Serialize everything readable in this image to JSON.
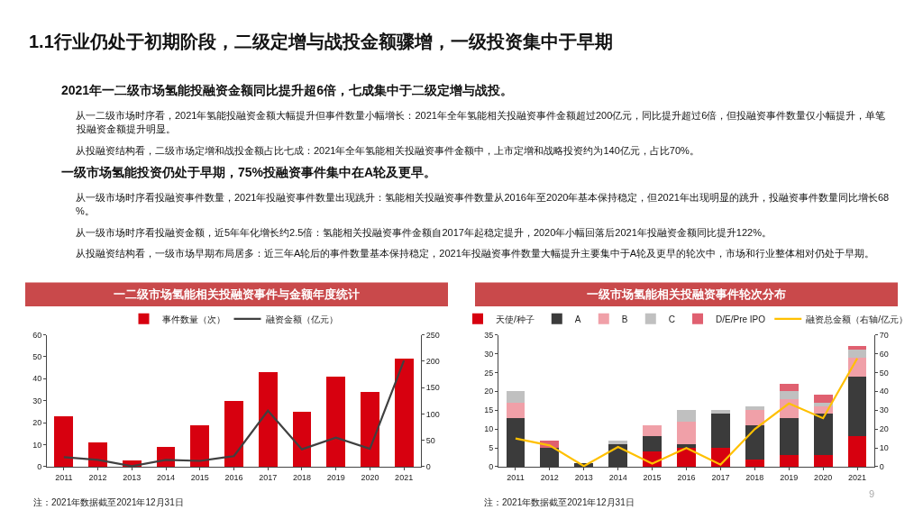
{
  "chart_data": [
    {
      "type": "other",
      "title": "1.1行业仍处于初期阶段，二级定增与战投金额骤增，一级投资集中于早期",
      "annotations": [
        "9"
      ]
    },
    {
      "type": "other",
      "title": "2021年一二级市场氢能投融资金额同比提升超6倍，七成集中于二级定增与战投。",
      "annotations": [
        "从一二级市场时序看，2021年氢能投融资金额大幅提升但事件数量小幅增长：2021年全年氢能相关投融资事件金额超过200亿元，同比提升超过6倍，但投融资事件数量仅小幅提升，单笔投融资金额提升明显。",
        "从投融资结构看，二级市场定增和战投金额占比七成：2021年全年氢能相关投融资事件金额中，上市定增和战略投资约为140亿元，占比70%。"
      ]
    },
    {
      "type": "other",
      "title": "一级市场氢能投资仍处于早期，75%投融资事件集中在A轮及更早。",
      "annotations": [
        "从一级市场时序看投融资事件数量，2021年投融资事件数量出现跳升：氢能相关投融资事件数量从2016年至2020年基本保持稳定，但2021年出现明显的跳升，投融资事件数量同比增长68%。",
        "从一级市场时序看投融资金额，近5年年化增长约2.5倍：氢能相关投融资事件金额自2017年起稳定提升，2020年小幅回落后2021年投融资金额同比提升122%。",
        "从投融资结构看，一级市场早期布局居多：近三年A轮后的事件数量基本保持稳定，2021年投融资事件数量大幅提升主要集中于A轮及更早的轮次中，市场和行业整体相对仍处于早期。"
      ]
    },
    {
      "type": "bar",
      "title": "一二级市场氢能相关投融资事件与金额年度统计",
      "categories": [
        "2011",
        "2012",
        "2013",
        "2014",
        "2015",
        "2016",
        "2017",
        "2018",
        "2019",
        "2020",
        "2021"
      ],
      "series": [
        {
          "name": "事件数量（次）",
          "type": "bar",
          "color": "#d7000f",
          "values": [
            23,
            11,
            3,
            9,
            19,
            30,
            43,
            25,
            41,
            34,
            49
          ]
        },
        {
          "name": "融资金额（亿元）",
          "type": "line",
          "axis": "y2",
          "color": "#404040",
          "values": [
            18,
            13,
            1,
            13,
            11,
            20,
            106,
            33,
            55,
            34,
            201
          ]
        }
      ],
      "ylim": [
        0,
        60
      ],
      "yticks": [
        0,
        10,
        20,
        30,
        40,
        50,
        60
      ],
      "y2lim": [
        0,
        250
      ],
      "y2ticks": [
        0,
        50,
        100,
        150,
        200,
        250
      ],
      "legend": "top",
      "annotations": [
        "注：2021年数据截至2021年12月31日"
      ]
    },
    {
      "type": "bar",
      "title": "一级市场氢能相关投融资事件轮次分布",
      "stacked": true,
      "categories": [
        "2011",
        "2012",
        "2013",
        "2014",
        "2015",
        "2016",
        "2017",
        "2018",
        "2019",
        "2020",
        "2021"
      ],
      "series": [
        {
          "name": "天使/种子",
          "type": "bar",
          "color": "#d7000f",
          "values": [
            0,
            0,
            0,
            0,
            4,
            5,
            5,
            2,
            3,
            3,
            8
          ]
        },
        {
          "name": "A",
          "type": "bar",
          "color": "#3b3b3b",
          "values": [
            13,
            5,
            1,
            6,
            4,
            1,
            9,
            9,
            10,
            11,
            16
          ]
        },
        {
          "name": "B",
          "type": "bar",
          "color": "#f0a0a8",
          "values": [
            4,
            0,
            0,
            0,
            3,
            6,
            0,
            4,
            5,
            2,
            5
          ]
        },
        {
          "name": "C",
          "type": "bar",
          "color": "#c0c0c0",
          "values": [
            3,
            0,
            0,
            1,
            0,
            3,
            1,
            1,
            2,
            1,
            2
          ]
        },
        {
          "name": "D/E/Pre IPO",
          "type": "bar",
          "color": "#e06070",
          "values": [
            0,
            2,
            0,
            0,
            0,
            0,
            0,
            0,
            2,
            2,
            1
          ]
        },
        {
          "name": "融资总金额（右轴/亿元）",
          "type": "line",
          "axis": "y2",
          "color": "#ffc000",
          "values": [
            15,
            11.3,
            0.3,
            10.5,
            1.6,
            9.9,
            1.1,
            19.9,
            33.5,
            25.7,
            57.5
          ]
        }
      ],
      "ylim": [
        0,
        35
      ],
      "yticks": [
        0,
        5,
        10,
        15,
        20,
        25,
        30,
        35
      ],
      "y2lim": [
        0,
        70
      ],
      "y2ticks": [
        0,
        10,
        20,
        30,
        40,
        50,
        60,
        70
      ],
      "legend": "top",
      "annotations": [
        "注：2021年数据截至2021年12月31日"
      ]
    }
  ]
}
